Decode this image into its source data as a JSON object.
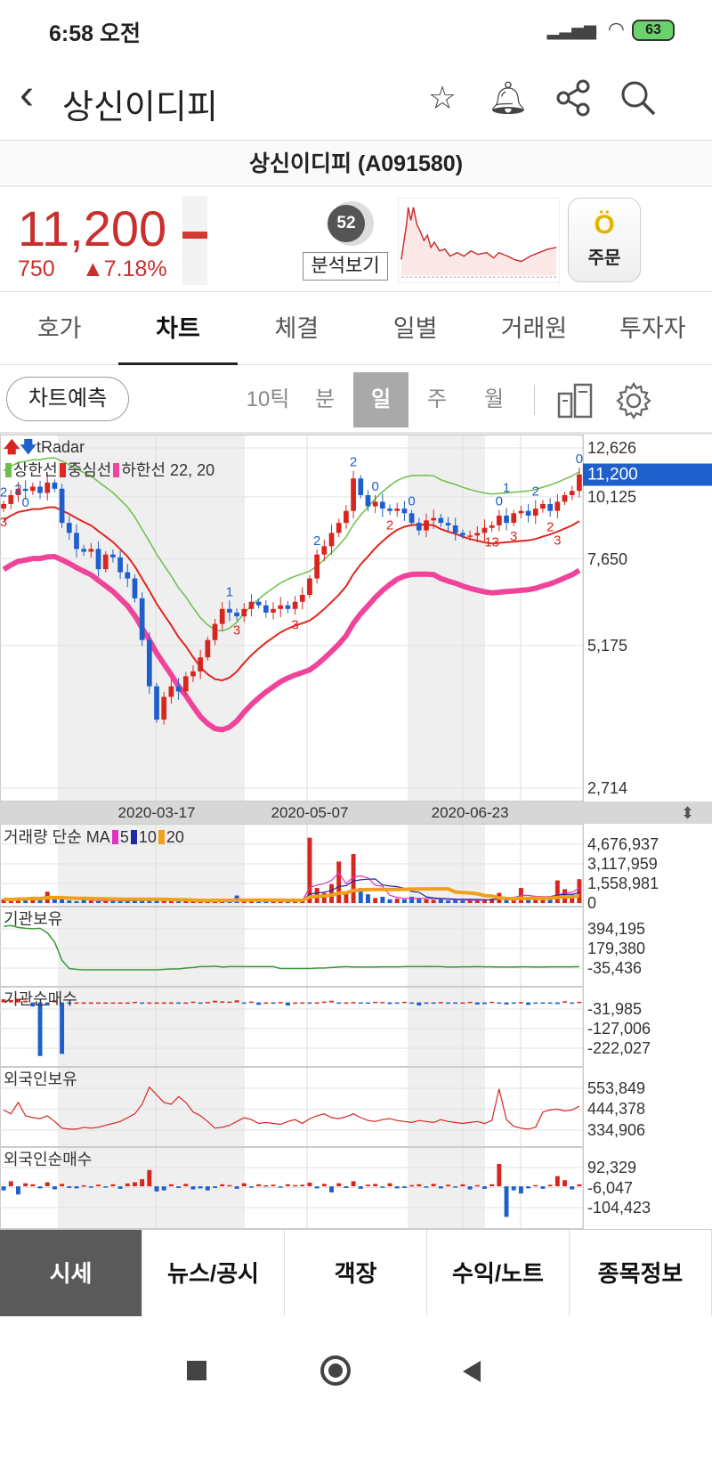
{
  "status_bar": {
    "time": "6:58 오전",
    "battery": "63"
  },
  "header": {
    "title": "상신이디피"
  },
  "stock": {
    "name_code": "상신이디피 (A091580)",
    "price": "11,200",
    "change": "750",
    "change_pct": "▲7.18%",
    "score": "52",
    "analysis_label": "분석보기",
    "order_label": "주문"
  },
  "tabs": [
    {
      "label": "호가"
    },
    {
      "label": "차트",
      "active": true
    },
    {
      "label": "체결"
    },
    {
      "label": "일별"
    },
    {
      "label": "거래원"
    },
    {
      "label": "투자자"
    }
  ],
  "chart_toolbar": {
    "predict_label": "차트예측",
    "periods": [
      "10틱",
      "분",
      "일",
      "주",
      "월"
    ],
    "active_period": "일"
  },
  "bottom_tabs": [
    {
      "label": "시세",
      "active": true
    },
    {
      "label": "뉴스/공시"
    },
    {
      "label": "객장"
    },
    {
      "label": "수익/노트"
    },
    {
      "label": "종목정보"
    }
  ],
  "colors": {
    "up": "#d7261f",
    "down": "#1f5fcc",
    "upper_band": "#6cc04a",
    "center_band": "#e0261f",
    "lower_band": "#f0449a",
    "ma5": "#e033c4",
    "ma10": "#1d2aa0",
    "ma20": "#f0a01a",
    "inst_hold": "#3a9a3a",
    "foreign_hold": "#d7261f"
  },
  "chart_data": {
    "type": "candlestick",
    "x_ticks": [
      {
        "i": 21,
        "label": "2020-03-17"
      },
      {
        "i": 42,
        "label": "2020-05-07"
      },
      {
        "i": 64,
        "label": "2020-06-23"
      }
    ],
    "main": {
      "title": "tRadar",
      "legend": [
        "상한선",
        "중심선",
        "하한선 22, 20"
      ],
      "y_scale": "log",
      "ylim": [
        2714,
        12626
      ],
      "y_ticks": [
        12626,
        10125,
        7650,
        5175,
        2714
      ],
      "y_tick_labels": [
        "12,626",
        "10,125",
        "7,650",
        "5,175",
        "2,714"
      ],
      "current_price": 11200,
      "current_label": "11,200",
      "close": [
        9800,
        10200,
        10500,
        10400,
        10600,
        10300,
        10800,
        10500,
        9000,
        8600,
        8000,
        7900,
        8000,
        7300,
        7800,
        7700,
        7200,
        7000,
        6400,
        5300,
        4300,
        3700,
        4100,
        4300,
        4200,
        4500,
        4600,
        4900,
        5300,
        5700,
        6100,
        6000,
        5900,
        6100,
        6300,
        6200,
        6000,
        6100,
        6200,
        6100,
        6300,
        6500,
        7000,
        7800,
        8100,
        8600,
        9000,
        9500,
        11000,
        10200,
        9700,
        9900,
        9600,
        9500,
        9600,
        9400,
        9000,
        8700,
        9100,
        9200,
        9000,
        8900,
        8600,
        8500,
        8500,
        8600,
        8800,
        8900,
        9300,
        9000,
        9400,
        9500,
        9300,
        9600,
        9800,
        9500,
        9900,
        10200,
        10400,
        11200
      ],
      "signals": [
        {
          "i": 0,
          "text": "2",
          "side": "up"
        },
        {
          "i": 0,
          "text": "3",
          "side": "down"
        },
        {
          "i": 2,
          "text": "2",
          "side": "up"
        },
        {
          "i": 3,
          "text": "0",
          "side": "up"
        },
        {
          "i": 31,
          "text": "1",
          "side": "up"
        },
        {
          "i": 32,
          "text": "3",
          "side": "down"
        },
        {
          "i": 40,
          "text": "3",
          "side": "down"
        },
        {
          "i": 43,
          "text": "2",
          "side": "up"
        },
        {
          "i": 48,
          "text": "2",
          "side": "up"
        },
        {
          "i": 51,
          "text": "0",
          "side": "up"
        },
        {
          "i": 53,
          "text": "2",
          "side": "down"
        },
        {
          "i": 56,
          "text": "0",
          "side": "up"
        },
        {
          "i": 67,
          "text": "13",
          "side": "down"
        },
        {
          "i": 68,
          "text": "0",
          "side": "up"
        },
        {
          "i": 69,
          "text": "1",
          "side": "up"
        },
        {
          "i": 70,
          "text": "3",
          "side": "down"
        },
        {
          "i": 73,
          "text": "2",
          "side": "up"
        },
        {
          "i": 75,
          "text": "2",
          "side": "down"
        },
        {
          "i": 76,
          "text": "3",
          "side": "down"
        },
        {
          "i": 79,
          "text": "0",
          "side": "up"
        }
      ]
    },
    "volume": {
      "title": "거래량 단순 MA",
      "legend": [
        "5",
        "10",
        "20"
      ],
      "y_ticks": [
        4676937,
        3117959,
        1558981,
        0
      ],
      "y_tick_labels": [
        "4,676,937",
        "3,117,959",
        "1,558,981",
        "0"
      ],
      "values_thousands": [
        300,
        250,
        400,
        350,
        500,
        300,
        900,
        450,
        350,
        200,
        150,
        250,
        200,
        150,
        180,
        200,
        150,
        200,
        300,
        350,
        250,
        200,
        150,
        150,
        200,
        250,
        150,
        200,
        300,
        250,
        200,
        150,
        600,
        200,
        250,
        200,
        150,
        200,
        150,
        250,
        200,
        300,
        5200,
        1200,
        800,
        1500,
        3300,
        900,
        3900,
        1200,
        700,
        400,
        500,
        300,
        350,
        300,
        500,
        400,
        300,
        250,
        300,
        200,
        250,
        200,
        200,
        250,
        300,
        350,
        800,
        400,
        300,
        1200,
        350,
        400,
        300,
        350,
        1800,
        1100,
        700,
        1900
      ]
    },
    "inst_hold": {
      "title": "기관보유",
      "y_ticks": [
        394195,
        179380,
        -35436
      ],
      "y_tick_labels": [
        "394,195",
        "179,380",
        "-35,436"
      ],
      "values_thousands": [
        420,
        430,
        410,
        400,
        395,
        400,
        350,
        250,
        50,
        -40,
        -50,
        -55,
        -55,
        -55,
        -55,
        -55,
        -55,
        -55,
        -55,
        -55,
        -55,
        -55,
        -50,
        -45,
        -45,
        -35,
        -30,
        -20,
        -20,
        -15,
        -25,
        -20,
        -20,
        -20,
        -20,
        -20,
        -20,
        -20,
        -40,
        -40,
        -40,
        -40,
        -40,
        -35,
        -35,
        -30,
        -25,
        -20,
        -25,
        -25,
        -25,
        -25,
        -22,
        -22,
        -22,
        -20,
        -20,
        -20,
        -18,
        -20,
        -20,
        -25,
        -25,
        -22,
        -22,
        -20,
        -22,
        -22,
        -25,
        -25,
        -25,
        -22,
        -22,
        -25,
        -25,
        -22,
        -22,
        -22,
        -22,
        -20
      ]
    },
    "inst_net": {
      "title": "기관순매수",
      "y_ticks": [
        -31985,
        -127006,
        -222027
      ],
      "y_tick_labels": [
        "-31,985",
        "-127,006",
        "-222,027"
      ],
      "values_thousands": [
        15,
        12,
        18,
        8,
        -20,
        -260,
        -15,
        10,
        -250,
        -5,
        0,
        0,
        0,
        0,
        0,
        0,
        0,
        0,
        3,
        -3,
        0,
        0,
        0,
        0,
        -4,
        0,
        4,
        -2,
        2,
        8,
        5,
        4,
        10,
        -3,
        4,
        -12,
        0,
        -3,
        2,
        -15,
        0,
        0,
        -4,
        0,
        4,
        8,
        -2,
        0,
        2,
        -2,
        -5,
        3,
        2,
        -8,
        -4,
        3,
        -2,
        -15,
        -6,
        -3,
        2,
        -4,
        -2,
        0,
        3,
        -10,
        -8,
        3,
        -6,
        -10,
        -4,
        2,
        -12,
        -3,
        -5,
        -3,
        -8,
        5,
        -6,
        3
      ]
    },
    "foreign_hold": {
      "title": "외국인보유",
      "y_ticks": [
        553849,
        444378,
        334906
      ],
      "y_tick_labels": [
        "553,849",
        "444,378",
        "334,906"
      ],
      "values_thousands": [
        440,
        420,
        480,
        410,
        400,
        395,
        410,
        380,
        345,
        340,
        340,
        350,
        345,
        350,
        360,
        370,
        380,
        400,
        420,
        470,
        560,
        520,
        480,
        470,
        510,
        480,
        430,
        410,
        380,
        345,
        350,
        360,
        380,
        400,
        390,
        370,
        375,
        370,
        365,
        380,
        390,
        370,
        395,
        410,
        420,
        400,
        395,
        405,
        420,
        400,
        385,
        380,
        390,
        395,
        385,
        380,
        375,
        385,
        380,
        375,
        390,
        380,
        375,
        370,
        375,
        380,
        370,
        385,
        550,
        390,
        355,
        345,
        340,
        350,
        430,
        440,
        445,
        435,
        440,
        460
      ]
    },
    "foreign_net": {
      "title": "외국인순매수",
      "y_ticks": [
        92329,
        -6047,
        -104423
      ],
      "y_tick_labels": [
        "92,329",
        "-6,047",
        "-104,423"
      ],
      "values_thousands": [
        -20,
        25,
        -40,
        15,
        10,
        -10,
        20,
        -15,
        12,
        -8,
        -10,
        5,
        -5,
        8,
        -6,
        10,
        -12,
        14,
        20,
        35,
        80,
        -25,
        -20,
        10,
        -8,
        12,
        -15,
        -10,
        -20,
        -8,
        10,
        6,
        -12,
        15,
        -6,
        10,
        5,
        8,
        -5,
        10,
        6,
        8,
        18,
        -10,
        12,
        -30,
        15,
        -8,
        25,
        -12,
        8,
        12,
        -6,
        15,
        -10,
        -8,
        6,
        10,
        -5,
        12,
        -10,
        8,
        -6,
        10,
        -15,
        6,
        -12,
        10,
        110,
        -150,
        -20,
        -35,
        -10,
        6,
        -12,
        8,
        50,
        30,
        -15,
        10
      ]
    }
  }
}
